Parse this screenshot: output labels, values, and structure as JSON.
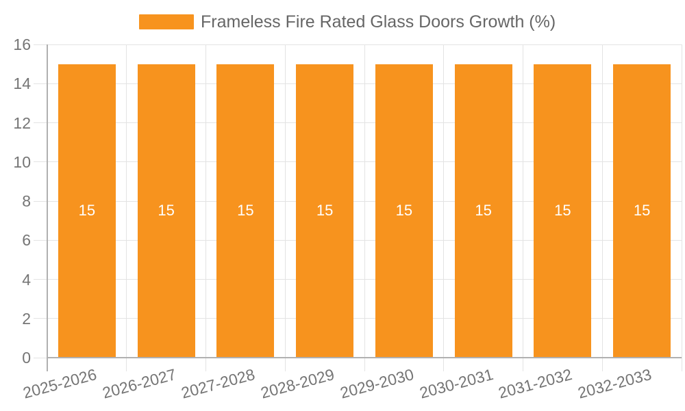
{
  "chart_data": {
    "type": "bar",
    "title": "Frameless Fire Rated Glass Doors Growth (%)",
    "legend": {
      "position": "top",
      "entries": [
        "Frameless Fire Rated Glass Doors Growth (%)"
      ]
    },
    "categories": [
      "2025-2026",
      "2026-2027",
      "2027-2028",
      "2028-2029",
      "2029-2030",
      "2030-2031",
      "2031-2032",
      "2032-2033"
    ],
    "values": [
      15,
      15,
      15,
      15,
      15,
      15,
      15,
      15
    ],
    "bar_value_labels": [
      "15",
      "15",
      "15",
      "15",
      "15",
      "15",
      "15",
      "15"
    ],
    "xlabel": "",
    "ylabel": "",
    "ylim": [
      0,
      16
    ],
    "yticks": [
      0,
      2,
      4,
      6,
      8,
      10,
      12,
      14,
      16
    ],
    "grid": "on",
    "x_tick_rotation_deg": -15,
    "colors": {
      "bar": "#F7931E",
      "axis_line": "#B0B0B0",
      "gridline": "#E3E3E3",
      "tick_label": "#757575",
      "legend_text": "#666666",
      "bar_value_text": "#FFFFFF",
      "background": "#FFFFFF"
    }
  }
}
